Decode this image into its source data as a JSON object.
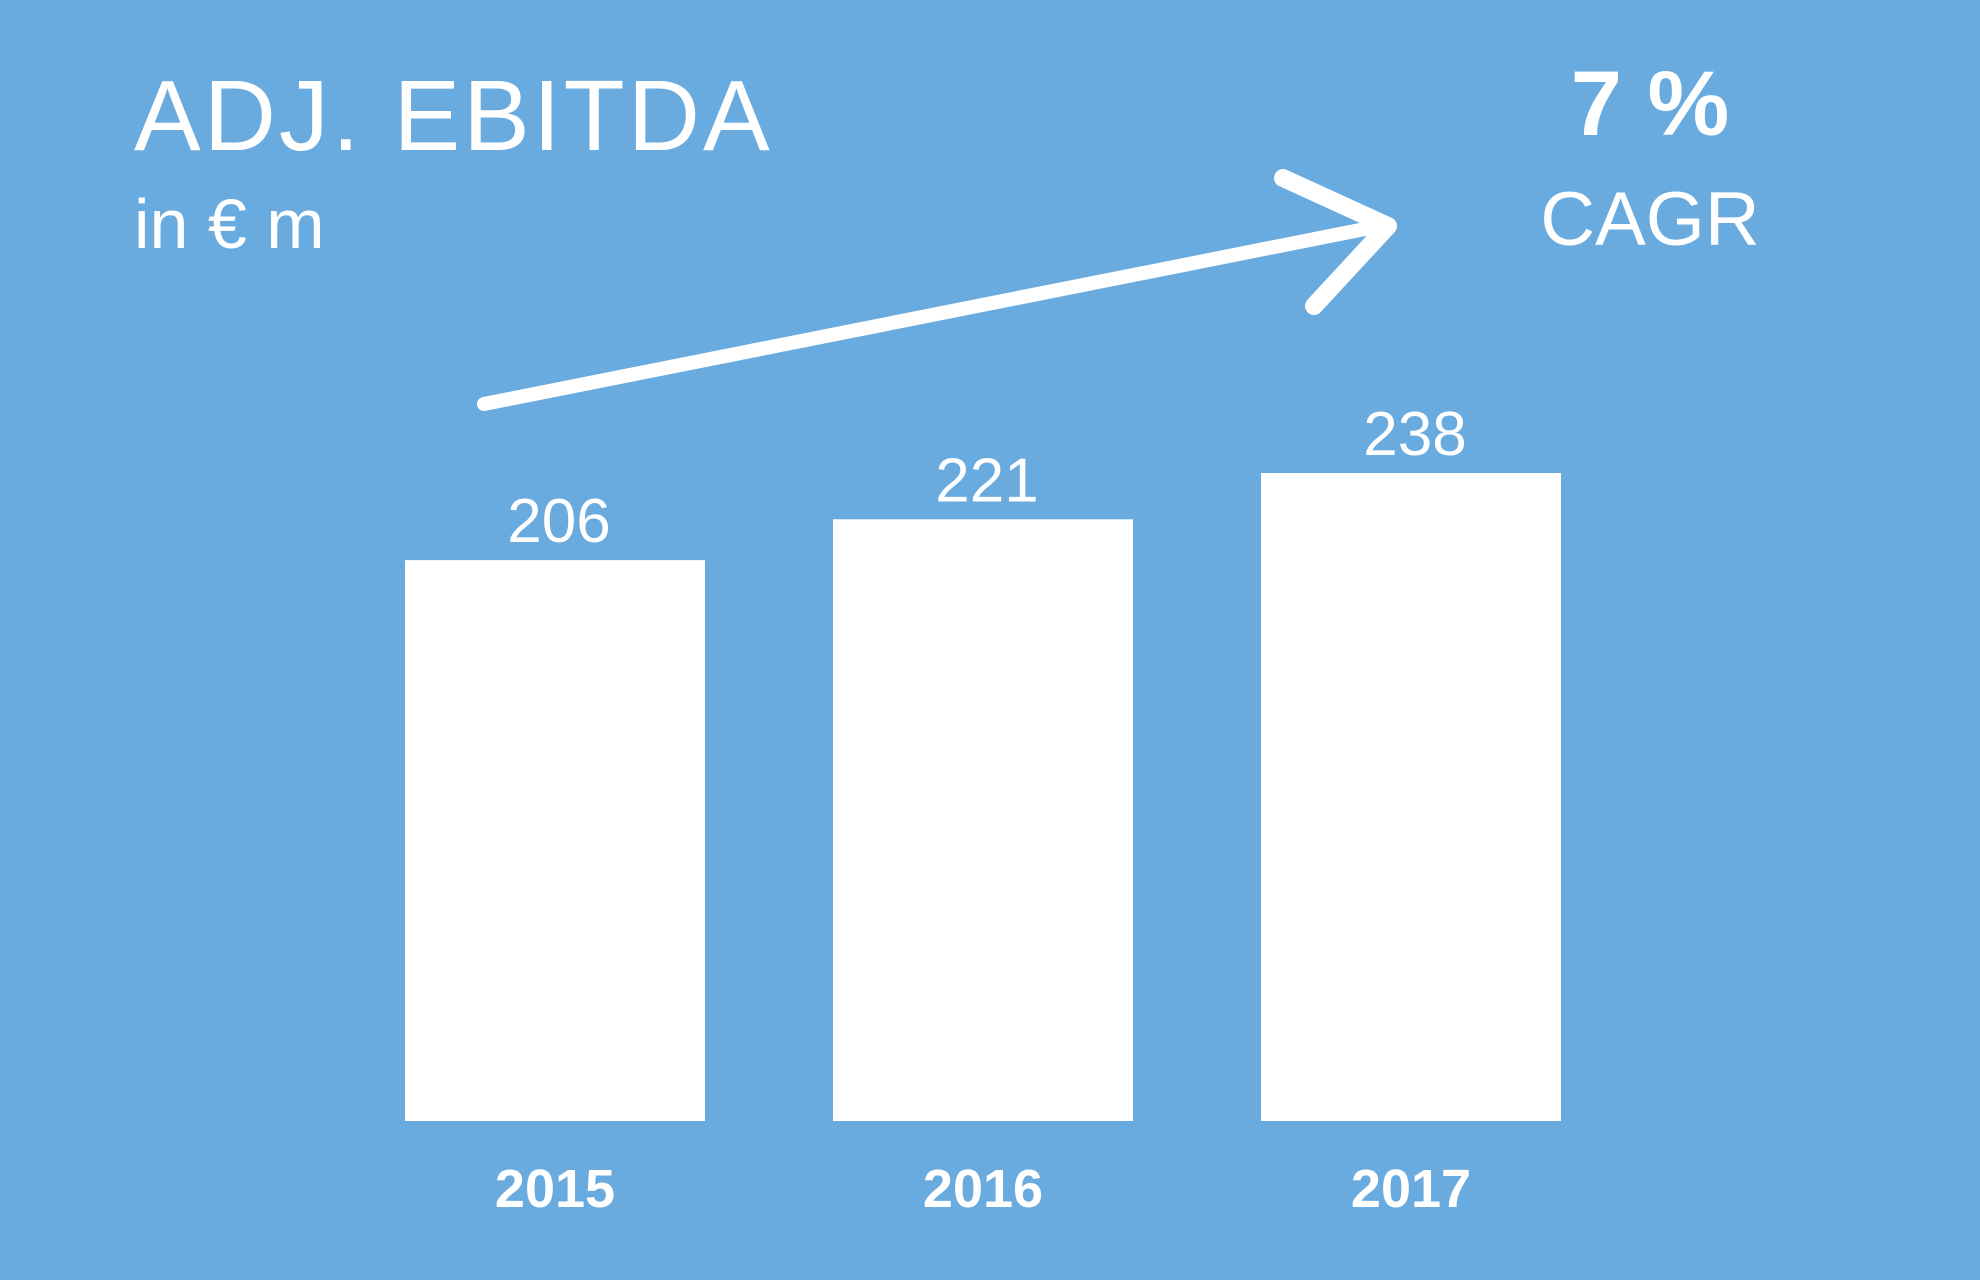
{
  "colors": {
    "background": "#6aabdf",
    "foreground": "#ffffff"
  },
  "header": {
    "title": "ADJ. EBITDA",
    "unit": "in € m"
  },
  "cagr": {
    "value": "7 %",
    "label": "CAGR"
  },
  "chart_data": {
    "type": "bar",
    "title": "ADJ. EBITDA",
    "subtitle": "in € m",
    "categories": [
      "2015",
      "2016",
      "2017"
    ],
    "values": [
      206,
      221,
      238
    ],
    "ylim": [
      0,
      238
    ],
    "grid": false,
    "legend": "none",
    "annotations": [
      "7 %",
      "CAGR"
    ]
  }
}
